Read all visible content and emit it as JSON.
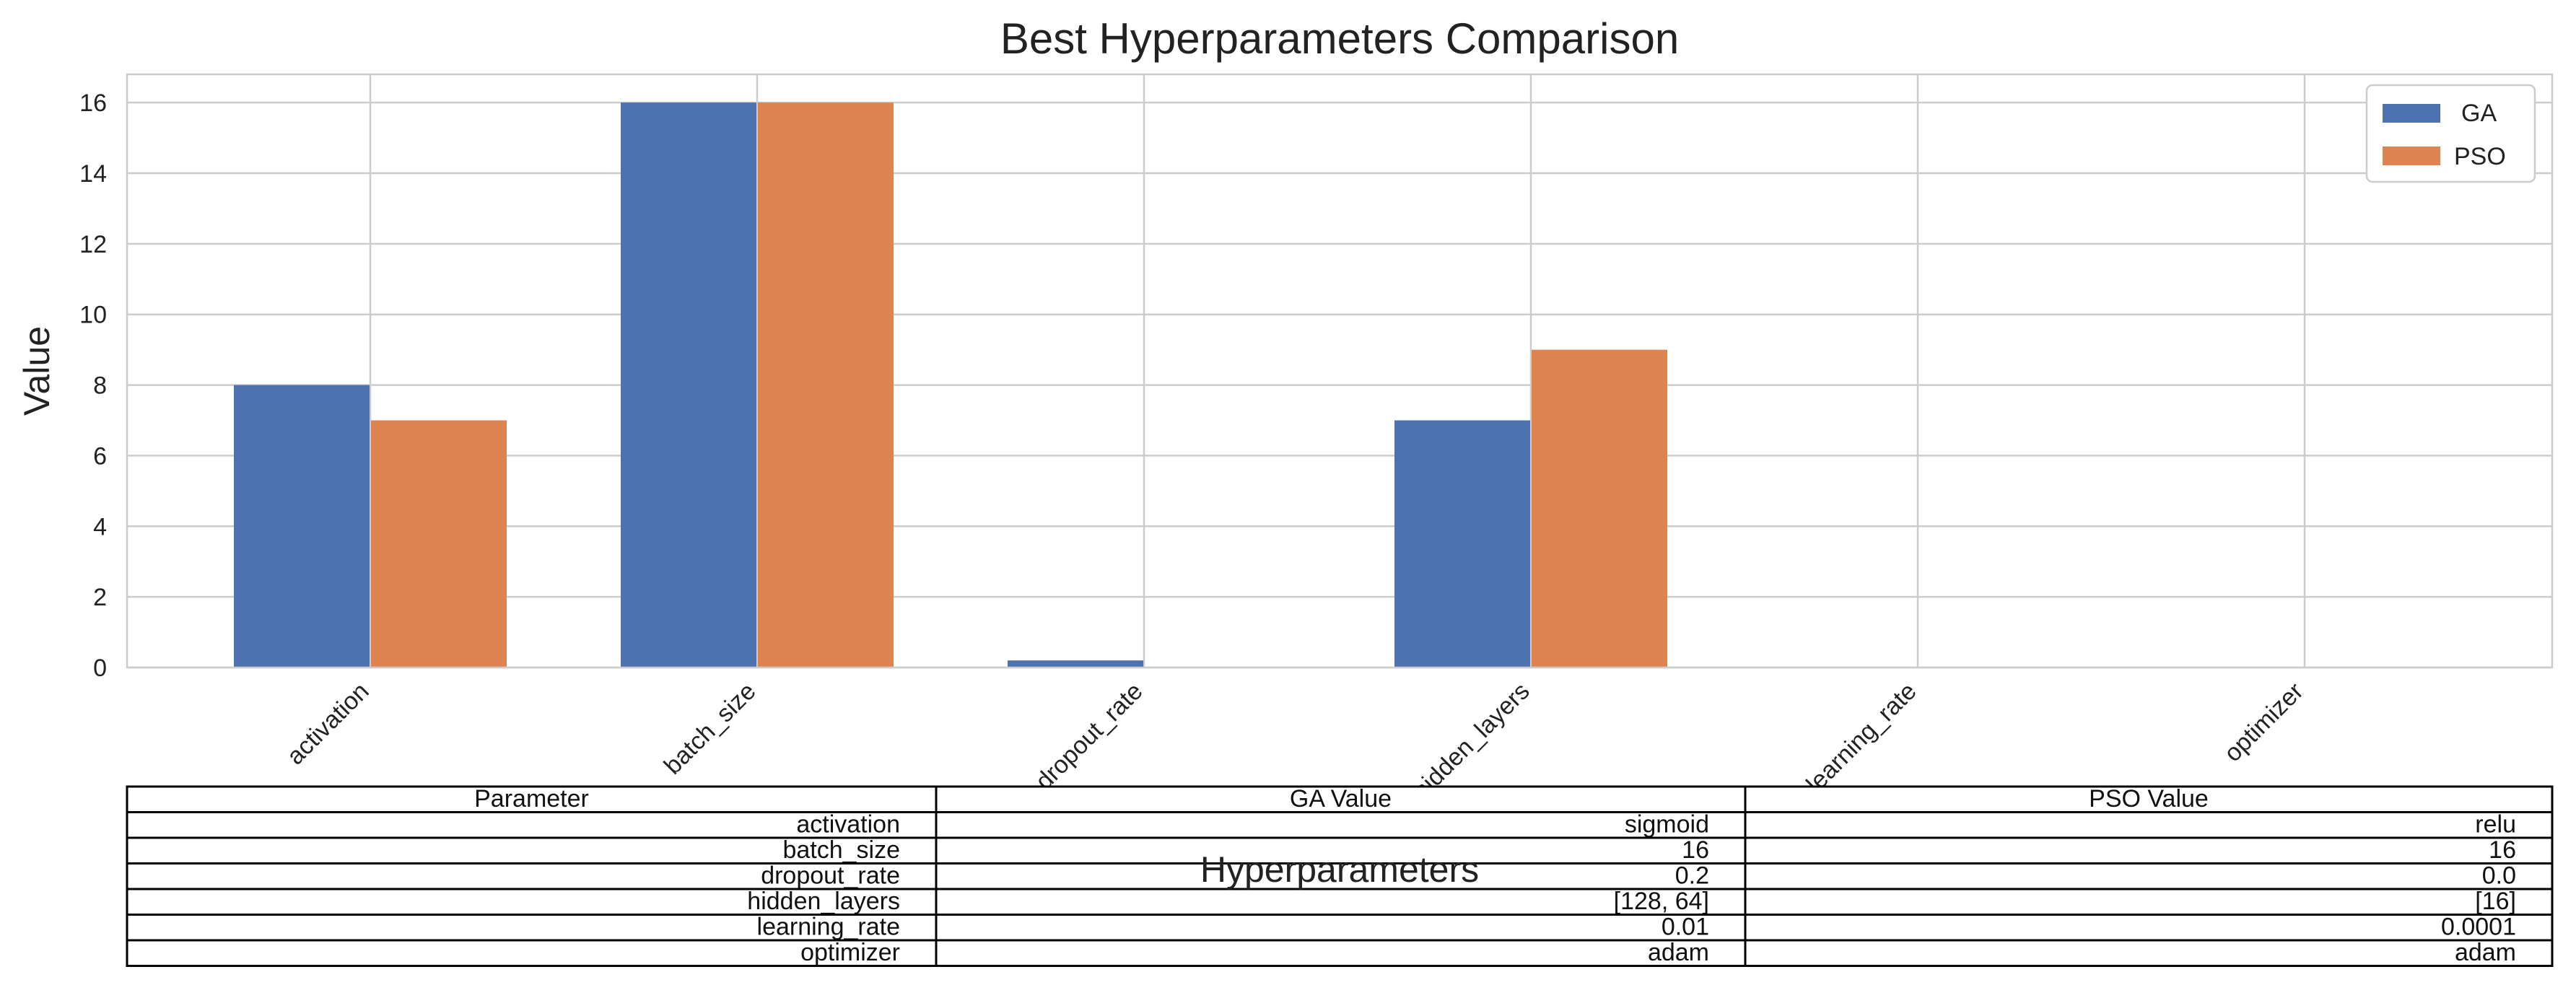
{
  "chart_data": {
    "type": "bar",
    "title": "Best Hyperparameters Comparison",
    "xlabel": "Hyperparameters",
    "ylabel": "Value",
    "categories": [
      "activation",
      "batch_size",
      "dropout_rate",
      "hidden_layers",
      "learning_rate",
      "optimizer"
    ],
    "series": [
      {
        "name": "GA",
        "values": [
          8,
          16,
          0.2,
          7,
          0.01,
          0
        ],
        "color": "#4c72b0"
      },
      {
        "name": "PSO",
        "values": [
          7,
          16,
          0.0,
          9,
          0.0001,
          0
        ],
        "color": "#dd8452"
      }
    ],
    "ylim": [
      0,
      16.8
    ],
    "yticks": [
      0,
      2,
      4,
      6,
      8,
      10,
      12,
      14,
      16
    ],
    "grid": true,
    "legend": "top-right"
  },
  "table": {
    "headers": [
      "Parameter",
      "GA Value",
      "PSO Value"
    ],
    "rows": [
      [
        "activation",
        "sigmoid",
        "relu"
      ],
      [
        "batch_size",
        "16",
        "16"
      ],
      [
        "dropout_rate",
        "0.2",
        "0.0"
      ],
      [
        "hidden_layers",
        "[128, 64]",
        "[16]"
      ],
      [
        "learning_rate",
        "0.01",
        "0.0001"
      ],
      [
        "optimizer",
        "adam",
        "adam"
      ]
    ]
  }
}
